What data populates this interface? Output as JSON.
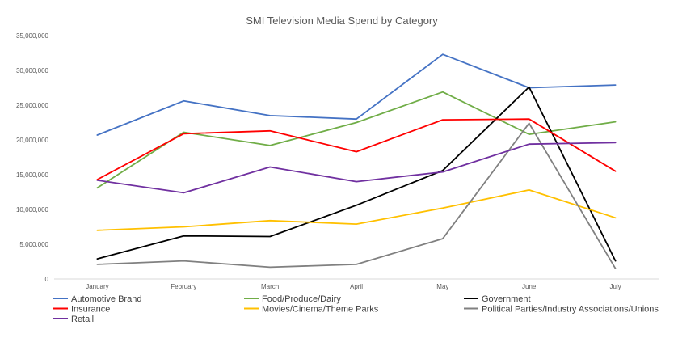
{
  "chart_data": {
    "type": "line",
    "title": "SMI Television Media Spend by Category",
    "xlabel": "",
    "ylabel": "",
    "categories": [
      "January",
      "February",
      "March",
      "April",
      "May",
      "June",
      "July"
    ],
    "ylim": [
      0,
      35000000
    ],
    "yticks": [
      0,
      5000000,
      10000000,
      15000000,
      20000000,
      25000000,
      30000000,
      35000000
    ],
    "ytick_labels": [
      "0",
      "5,000,000",
      "10,000,000",
      "15,000,000",
      "20,000,000",
      "25,000,000",
      "30,000,000",
      "35,000,000"
    ],
    "grid": false,
    "legend_position": "bottom",
    "series": [
      {
        "name": "Automotive Brand",
        "color": "#4472c4",
        "values": [
          20700000,
          25600000,
          23500000,
          23000000,
          32300000,
          27500000,
          27900000
        ]
      },
      {
        "name": "Food/Produce/Dairy",
        "color": "#70ad47",
        "values": [
          13100000,
          21100000,
          19200000,
          22500000,
          26900000,
          20800000,
          22600000
        ]
      },
      {
        "name": "Government",
        "color": "#000000",
        "values": [
          2900000,
          6200000,
          6100000,
          10600000,
          15600000,
          27600000,
          2600000
        ]
      },
      {
        "name": "Insurance",
        "color": "#ff0000",
        "values": [
          14300000,
          20900000,
          21300000,
          18300000,
          22900000,
          23000000,
          15500000
        ]
      },
      {
        "name": "Movies/Cinema/Theme Parks",
        "color": "#ffc000",
        "values": [
          7000000,
          7500000,
          8400000,
          7900000,
          10200000,
          12800000,
          8800000
        ]
      },
      {
        "name": "Political Parties/Industry Associations/Unions",
        "color": "#808080",
        "values": [
          2100000,
          2600000,
          1700000,
          2100000,
          5800000,
          22400000,
          1500000
        ]
      },
      {
        "name": "Retail",
        "color": "#7030a0",
        "values": [
          14200000,
          12400000,
          16100000,
          14000000,
          15400000,
          19400000,
          19600000
        ]
      }
    ]
  }
}
